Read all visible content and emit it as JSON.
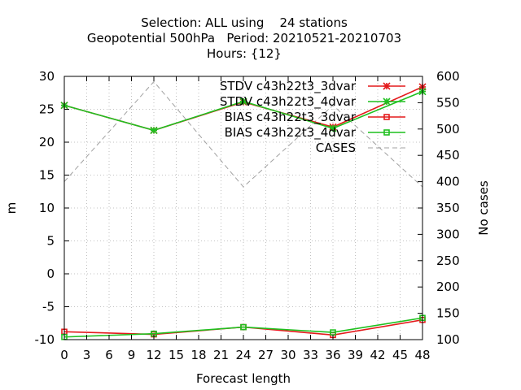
{
  "chart_data": {
    "type": "line",
    "title_lines": [
      "Selection: ALL using    24 stations",
      "Geopotential 500hPa   Period: 20210521-20210703",
      "Hours: {12}"
    ],
    "xlabel": "Forecast length",
    "ylabel": "m",
    "y2label": "No cases",
    "xlim": [
      0,
      48
    ],
    "ylim": [
      -10,
      30
    ],
    "y2lim": [
      100,
      600
    ],
    "x_ticks": [
      0,
      3,
      6,
      9,
      12,
      15,
      18,
      21,
      24,
      27,
      30,
      33,
      36,
      39,
      42,
      45,
      48
    ],
    "y_ticks": [
      -10,
      -5,
      0,
      5,
      10,
      15,
      20,
      25,
      30
    ],
    "y2_ticks": [
      100,
      150,
      200,
      250,
      300,
      350,
      400,
      450,
      500,
      550,
      600
    ],
    "grid": true,
    "legend_position": "top-right",
    "colors": {
      "red": "#e41a1c",
      "green": "#1fc01f",
      "cases": "#a0a0a0",
      "grid": "#b0b0b0"
    },
    "series": [
      {
        "name": "STDV c43h22t3_3dvar",
        "axis": "y1",
        "color": "#e41a1c",
        "marker": "star",
        "style": "solid",
        "x": [
          0,
          12,
          24,
          36,
          48
        ],
        "y": [
          25.6,
          21.8,
          26.1,
          22.3,
          28.4
        ]
      },
      {
        "name": "STDV c43h22t3_4dvar",
        "axis": "y1",
        "color": "#1fc01f",
        "marker": "star",
        "style": "solid",
        "x": [
          0,
          12,
          24,
          36,
          48
        ],
        "y": [
          25.6,
          21.8,
          26.2,
          22.1,
          27.7
        ]
      },
      {
        "name": "BIAS c43h22t3_3dvar",
        "axis": "y1",
        "color": "#e41a1c",
        "marker": "square",
        "style": "solid",
        "x": [
          0,
          12,
          24,
          36,
          48
        ],
        "y": [
          -8.8,
          -9.2,
          -8.1,
          -9.3,
          -7.0
        ]
      },
      {
        "name": "BIAS c43h22t3_4dvar",
        "axis": "y1",
        "color": "#1fc01f",
        "marker": "square",
        "style": "solid",
        "x": [
          0,
          12,
          24,
          36,
          48
        ],
        "y": [
          -9.6,
          -9.1,
          -8.1,
          -8.9,
          -6.7
        ]
      },
      {
        "name": "CASES",
        "axis": "y2",
        "color": "#a0a0a0",
        "marker": "none",
        "style": "dashed",
        "x": [
          0,
          12,
          24,
          36,
          48
        ],
        "y": [
          400,
          590,
          390,
          545,
          390
        ]
      }
    ]
  }
}
